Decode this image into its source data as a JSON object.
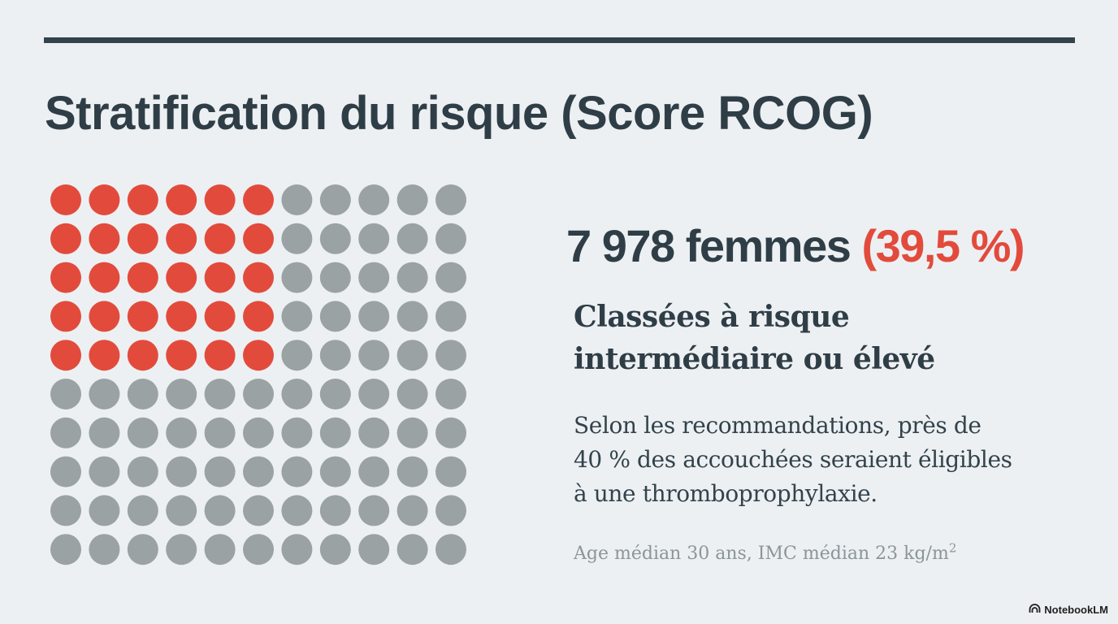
{
  "title": "Stratification du risque (Score RCOG)",
  "stat": {
    "count": "7 978 femmes",
    "percent": "(39,5 %)"
  },
  "heading_lines": [
    "Classées à risque",
    "intermédiaire ou élevé"
  ],
  "description_lines": [
    "Selon les recommandations, près de",
    "40 % des accouchées seraient éligibles",
    "à une thromboprophylaxie."
  ],
  "footnote": {
    "text": "Age médian 30 ans, IMC médian 23 kg/m",
    "superscript": "2"
  },
  "brand": "NotebookLM",
  "icons": {
    "brand_logo": "notebooklm-logo-icon"
  },
  "waffle": {
    "rows": 10,
    "cols": 11,
    "highlighted_rows": 5,
    "highlighted_cols": 6,
    "colors": {
      "highlight": "#e24b3c",
      "base": "#9aa2a4",
      "text_dark": "#2f3e46",
      "background": "#edf0f3"
    }
  }
}
